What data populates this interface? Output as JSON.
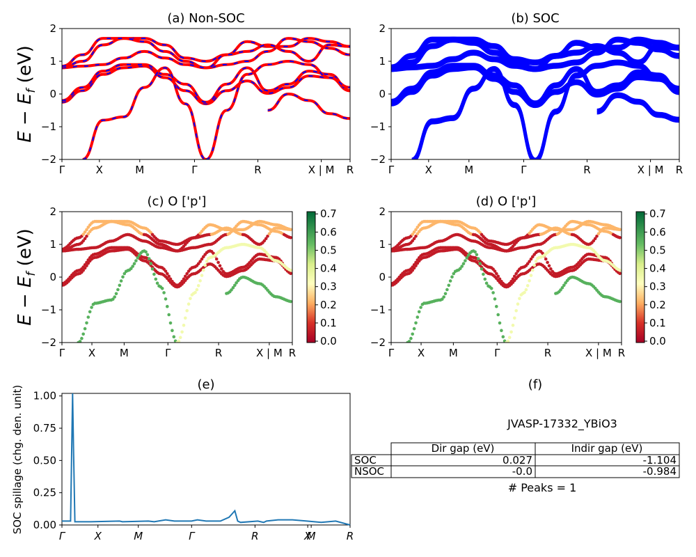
{
  "panels": {
    "a": {
      "title": "(a) Non-SOC"
    },
    "b": {
      "title": "(b) SOC"
    },
    "c": {
      "title": "(c)  O ['p']"
    },
    "d": {
      "title": "(d) O ['p']"
    },
    "e": {
      "title": "(e)"
    },
    "f": {
      "title": "(f)"
    }
  },
  "axes": {
    "band_ylabel": "E − E_f (eV)",
    "spill_ylabel": "SOC spillage (chg. den. unit)",
    "band_yticks": [
      "2",
      "1",
      "0",
      "−1",
      "−2"
    ],
    "spill_yticks": [
      "1.00",
      "0.75",
      "0.50",
      "0.25",
      "0.00"
    ],
    "colorbar_ticks": [
      "0.7",
      "0.6",
      "0.5",
      "0.4",
      "0.3",
      "0.2",
      "0.1",
      "0.0"
    ],
    "kpath_labels_ab": [
      "Γ",
      "X",
      "M",
      "Γ",
      "R",
      "X | M",
      "R"
    ],
    "kpath_labels_cd": [
      "Γ",
      "X",
      "M",
      "Γ",
      "R",
      "X | M",
      "R"
    ],
    "kpath_labels_e": [
      "Γ",
      "X",
      "M",
      "Γ",
      "R",
      "X",
      "M",
      "R"
    ]
  },
  "colors": {
    "nonsoc_line": "#ff0000",
    "nonsoc_dash": "#0000ff",
    "soc_line": "#0000ff",
    "spillage_line": "#1f77b4",
    "colormap": "RdYlGn"
  },
  "info": {
    "material": "JVASP-17332_YBiO3",
    "table_headers": [
      "Dir gap (eV)",
      "Indir gap (eV)"
    ],
    "rows": [
      {
        "label": "SOC",
        "dir": "0.027",
        "indir": "-1.104"
      },
      {
        "label": "NSOC",
        "dir": "-0.0",
        "indir": "-0.984"
      }
    ],
    "peaks": "# Peaks = 1"
  },
  "chart_data": [
    {
      "type": "line",
      "panel": "a",
      "title": "(a) Non-SOC",
      "ylabel": "E − E_f (eV)",
      "ylim": [
        -2,
        2
      ],
      "x_ticks": [
        "Γ",
        "X",
        "M",
        "Γ",
        "R",
        "X | M",
        "R"
      ],
      "note": "Band structure, red solid with blue dashed overlay",
      "series": [
        {
          "values": [
            -0.25,
            0.1,
            0.6,
            0.8,
            0.85,
            0.5,
            0.1,
            -0.3,
            0.1,
            0.4,
            0.02,
            0.2,
            0.55,
            0.5,
            0.1
          ]
        },
        {
          "values": [
            -0.2,
            0.2,
            0.7,
            0.9,
            0.9,
            0.6,
            0.3,
            -0.25,
            0.3,
            0.8,
            0.1,
            0.3,
            0.7,
            0.6,
            0.1
          ]
        },
        {
          "values": [
            0.8,
            0.85,
            0.9,
            1.1,
            1.3,
            1.1,
            0.9,
            0.8,
            0.9,
            1.0,
            1.3,
            1.7,
            1.6,
            1.4,
            1.2
          ]
        },
        {
          "values": [
            0.8,
            1.0,
            1.5,
            1.7,
            1.7,
            1.5,
            1.1,
            1.0,
            1.2,
            1.6,
            1.45,
            1.45,
            1.7,
            1.6,
            1.45
          ]
        },
        {
          "values": [
            0.85,
            1.2,
            1.7,
            1.7,
            1.6,
            1.3,
            1.0,
            0.8,
            1.2,
            1.3,
            1.5,
            1.3,
            1.0,
            1.5,
            1.45
          ]
        },
        {
          "values": [
            null,
            -2.0,
            -0.8,
            -0.7,
            0.2,
            0.8,
            -0.3,
            -2.0,
            null,
            null,
            -0.5,
            0.0,
            -0.2,
            -0.6,
            -0.75
          ]
        },
        {
          "values": [
            null,
            null,
            null,
            null,
            null,
            null,
            null,
            -2.0,
            -0.5,
            0.6,
            0.9,
            1.0,
            0.9,
            0.5,
            0.2
          ]
        }
      ]
    },
    {
      "type": "line",
      "panel": "b",
      "title": "(b) SOC",
      "ylim": [
        -2,
        2
      ],
      "x_ticks": [
        "Γ",
        "X",
        "M",
        "Γ",
        "R",
        "X | M",
        "R"
      ],
      "series": [
        {
          "values": [
            -0.25,
            0.1,
            0.6,
            0.8,
            0.85,
            0.5,
            0.1,
            -0.3,
            0.1,
            0.4,
            0.02,
            0.2,
            0.55,
            0.5,
            0.1
          ]
        },
        {
          "values": [
            -0.2,
            0.2,
            0.7,
            0.9,
            0.9,
            0.6,
            0.3,
            -0.25,
            0.3,
            0.8,
            0.1,
            0.3,
            0.7,
            0.6,
            0.1
          ]
        },
        {
          "values": [
            0.8,
            0.85,
            0.9,
            1.1,
            1.3,
            1.1,
            0.9,
            0.8,
            0.9,
            1.0,
            1.3,
            1.7,
            1.6,
            1.4,
            1.2
          ]
        },
        {
          "values": [
            0.8,
            1.0,
            1.5,
            1.7,
            1.7,
            1.5,
            1.1,
            1.0,
            1.2,
            1.6,
            1.45,
            1.45,
            1.7,
            1.6,
            1.45
          ]
        },
        {
          "values": [
            0.85,
            1.2,
            1.7,
            1.7,
            1.6,
            1.3,
            1.0,
            0.8,
            1.2,
            1.3,
            1.5,
            1.3,
            1.0,
            1.5,
            1.45
          ]
        },
        {
          "values": [
            null,
            -2.0,
            -0.8,
            -0.7,
            0.2,
            0.8,
            -0.3,
            -2.0,
            null,
            null,
            -0.5,
            0.0,
            -0.2,
            -0.6,
            -0.75
          ]
        },
        {
          "values": [
            null,
            null,
            null,
            null,
            null,
            null,
            null,
            -2.0,
            -0.5,
            0.6,
            0.9,
            1.0,
            0.9,
            0.5,
            0.2
          ]
        }
      ]
    },
    {
      "type": "scatter",
      "panel": "c",
      "title": "(c)  O ['p']",
      "ylabel": "E − E_f (eV)",
      "ylim": [
        -2,
        2
      ],
      "colorbar_range": [
        0.0,
        0.7
      ],
      "x_ticks": [
        "Γ",
        "X",
        "M",
        "Γ",
        "R",
        "X | M",
        "R"
      ],
      "note": "Band points colored by O p-orbital projection"
    },
    {
      "type": "scatter",
      "panel": "d",
      "title": "(d) O ['p']",
      "ylim": [
        -2,
        2
      ],
      "colorbar_range": [
        0.0,
        0.7
      ],
      "x_ticks": [
        "Γ",
        "X",
        "M",
        "Γ",
        "R",
        "X | M",
        "R"
      ]
    },
    {
      "type": "line",
      "panel": "e",
      "title": "(e)",
      "ylabel": "SOC spillage (chg. den. unit)",
      "ylim": [
        0,
        1.02
      ],
      "x_ticks": [
        "Γ",
        "X",
        "M",
        "Γ",
        "R",
        "X",
        "M",
        "R"
      ],
      "x": [
        0.0,
        0.03,
        0.037,
        0.04,
        0.045,
        0.05,
        0.1,
        0.2,
        0.21,
        0.3,
        0.32,
        0.36,
        0.39,
        0.4,
        0.45,
        0.47,
        0.5,
        0.55,
        0.58,
        0.6,
        0.61,
        0.62,
        0.68,
        0.7,
        0.71,
        0.75,
        0.8,
        0.85,
        0.9,
        0.95,
        1.0
      ],
      "y": [
        0.03,
        0.03,
        1.02,
        0.6,
        0.025,
        0.025,
        0.025,
        0.03,
        0.025,
        0.03,
        0.025,
        0.04,
        0.03,
        0.03,
        0.03,
        0.04,
        0.03,
        0.03,
        0.06,
        0.11,
        0.03,
        0.02,
        0.03,
        0.02,
        0.03,
        0.04,
        0.04,
        0.03,
        0.02,
        0.03,
        0.0
      ]
    }
  ]
}
